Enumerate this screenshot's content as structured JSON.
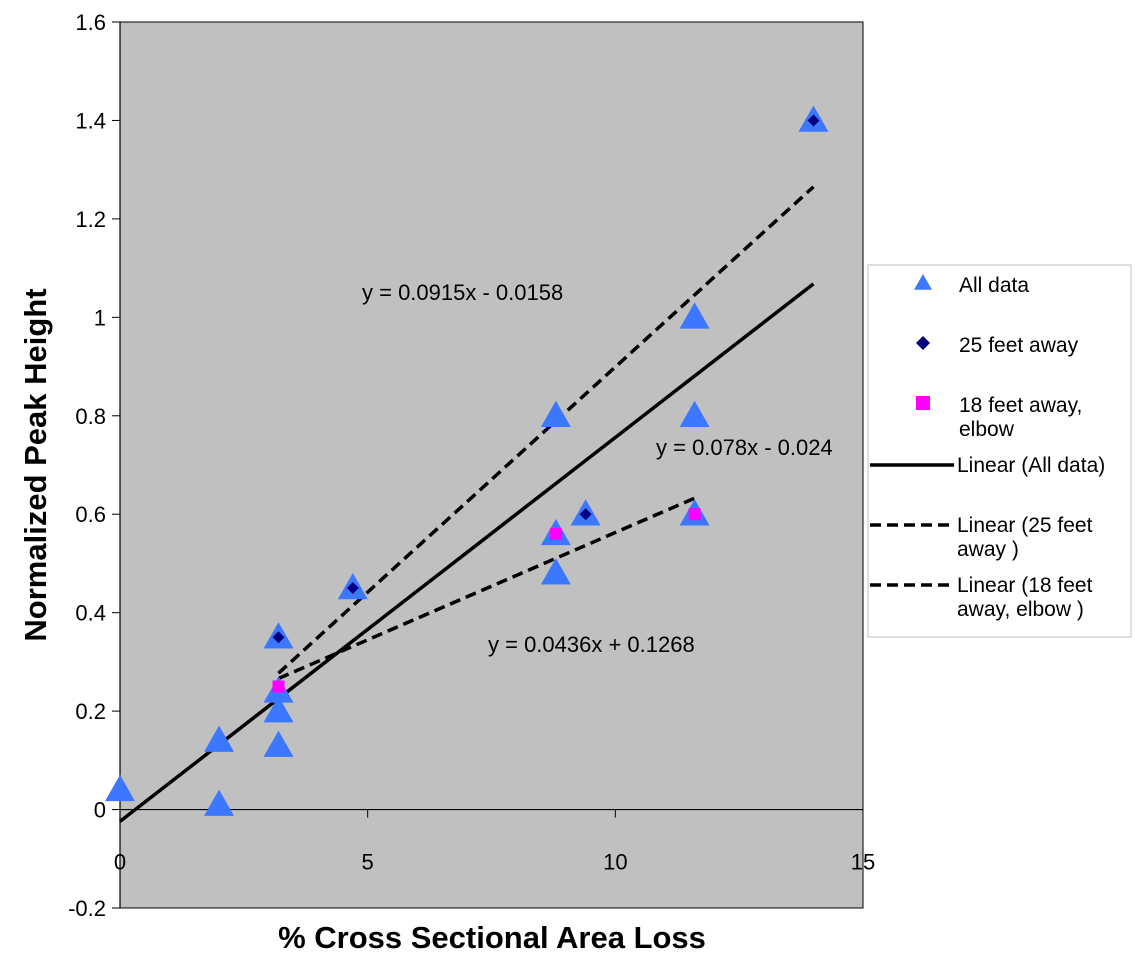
{
  "chart_data": {
    "type": "scatter",
    "xlabel": "% Cross Sectional Area Loss",
    "ylabel": "Normalized Peak Height",
    "xlim": [
      0,
      15
    ],
    "ylim": [
      -0.2,
      1.6
    ],
    "x_ticks": [
      "0",
      "5",
      "10",
      "15"
    ],
    "y_ticks": [
      "-0.2",
      "0",
      "0.2",
      "0.4",
      "0.6",
      "0.8",
      "1",
      "1.2",
      "1.4",
      "1.6"
    ],
    "grid": false,
    "plot_background": "#c0c0c0",
    "legend_position": "right",
    "series": [
      {
        "name": "All data",
        "marker": "triangle",
        "color": "#3c78ff",
        "points": [
          {
            "x": 0,
            "y": 0.04
          },
          {
            "x": 2,
            "y": 0.01
          },
          {
            "x": 2,
            "y": 0.14
          },
          {
            "x": 3.2,
            "y": 0.13
          },
          {
            "x": 3.2,
            "y": 0.2
          },
          {
            "x": 3.2,
            "y": 0.24
          },
          {
            "x": 3.2,
            "y": 0.35
          },
          {
            "x": 4.7,
            "y": 0.45
          },
          {
            "x": 8.8,
            "y": 0.48
          },
          {
            "x": 8.8,
            "y": 0.56
          },
          {
            "x": 8.8,
            "y": 0.8
          },
          {
            "x": 9.4,
            "y": 0.6
          },
          {
            "x": 11.6,
            "y": 0.6
          },
          {
            "x": 11.6,
            "y": 0.8
          },
          {
            "x": 11.6,
            "y": 1.0
          },
          {
            "x": 14,
            "y": 1.4
          }
        ]
      },
      {
        "name": "25 feet away",
        "marker": "diamond",
        "color": "#000080",
        "points": [
          {
            "x": 3.2,
            "y": 0.35
          },
          {
            "x": 4.7,
            "y": 0.45
          },
          {
            "x": 9.4,
            "y": 0.6
          },
          {
            "x": 14,
            "y": 1.4
          }
        ]
      },
      {
        "name": "18 feet away, elbow",
        "marker": "square",
        "color": "#ff00ff",
        "points": [
          {
            "x": 3.2,
            "y": 0.25
          },
          {
            "x": 8.8,
            "y": 0.56
          },
          {
            "x": 11.6,
            "y": 0.6
          }
        ]
      }
    ],
    "trendlines": [
      {
        "name": "Linear (All data)",
        "style": "solid",
        "slope": 0.078,
        "intercept": -0.024,
        "x_range": [
          0,
          14
        ],
        "equation": "y = 0.078x - 0.024"
      },
      {
        "name": "Linear (25 feet away )",
        "style": "dashed",
        "slope": 0.0915,
        "intercept": -0.0158,
        "x_range": [
          3.2,
          14
        ],
        "equation": "y = 0.0915x - 0.0158"
      },
      {
        "name": "Linear (18 feet away, elbow )",
        "style": "dashed",
        "slope": 0.0436,
        "intercept": 0.1268,
        "x_range": [
          3.2,
          11.6
        ],
        "equation": "y = 0.0436x + 0.1268"
      }
    ]
  },
  "legend": {
    "entries": [
      {
        "lines": [
          "All data"
        ],
        "kind": "triangle",
        "color": "#3c78ff"
      },
      {
        "lines": [
          "25 feet away"
        ],
        "kind": "diamond",
        "color": "#000080"
      },
      {
        "lines": [
          "18 feet away,",
          "elbow"
        ],
        "kind": "square",
        "color": "#ff00ff"
      },
      {
        "lines": [
          "Linear (All data)"
        ],
        "kind": "solid"
      },
      {
        "lines": [
          "Linear (25 feet",
          "away )"
        ],
        "kind": "dashed"
      },
      {
        "lines": [
          "Linear (18 feet",
          "away, elbow )"
        ],
        "kind": "dashed"
      }
    ]
  }
}
